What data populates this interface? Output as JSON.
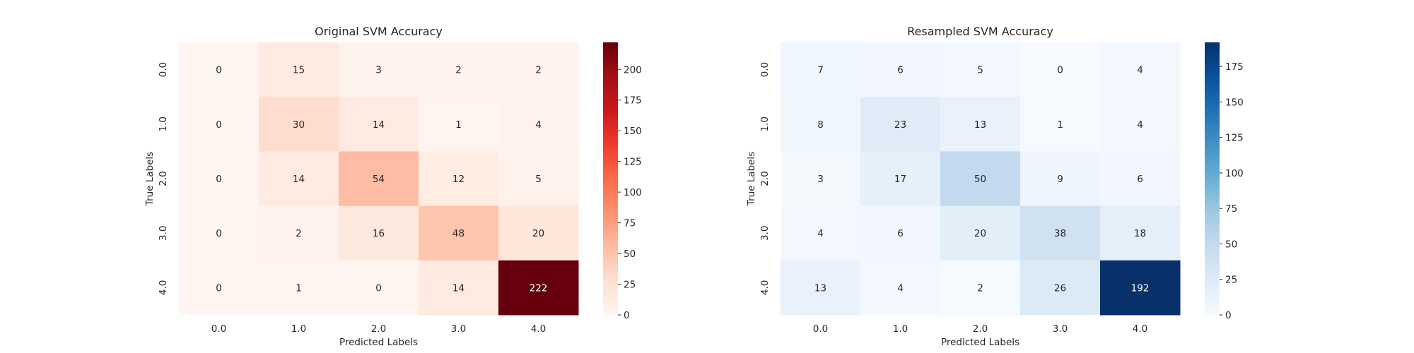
{
  "chart_data": [
    {
      "type": "heatmap",
      "title": "Original SVM Accuracy",
      "xlabel": "Predicted Labels",
      "ylabel": "True Labels",
      "x_categories": [
        "0.0",
        "1.0",
        "2.0",
        "3.0",
        "4.0"
      ],
      "y_categories": [
        "0.0",
        "1.0",
        "2.0",
        "3.0",
        "4.0"
      ],
      "values": [
        [
          0,
          15,
          3,
          2,
          2
        ],
        [
          0,
          30,
          14,
          1,
          4
        ],
        [
          0,
          14,
          54,
          12,
          5
        ],
        [
          0,
          2,
          16,
          48,
          20
        ],
        [
          0,
          1,
          0,
          14,
          222
        ]
      ],
      "colormap": "Reds",
      "color_low": "#fff5f0",
      "color_high": "#67000d",
      "vmin": 0,
      "vmax": 222,
      "colorbar_ticks": [
        0,
        25,
        50,
        75,
        100,
        125,
        150,
        175,
        200
      ]
    },
    {
      "type": "heatmap",
      "title": "Resampled SVM Accuracy",
      "xlabel": "Predicted Labels",
      "ylabel": "True Labels",
      "x_categories": [
        "0.0",
        "1.0",
        "2.0",
        "3.0",
        "4.0"
      ],
      "y_categories": [
        "0.0",
        "1.0",
        "2.0",
        "3.0",
        "4.0"
      ],
      "values": [
        [
          7,
          6,
          5,
          0,
          4
        ],
        [
          8,
          23,
          13,
          1,
          4
        ],
        [
          3,
          17,
          50,
          9,
          6
        ],
        [
          4,
          6,
          20,
          38,
          18
        ],
        [
          13,
          4,
          2,
          26,
          192
        ]
      ],
      "colormap": "Blues",
      "color_low": "#f7fbff",
      "color_high": "#08306b",
      "vmin": 0,
      "vmax": 192,
      "colorbar_ticks": [
        0,
        25,
        50,
        75,
        100,
        125,
        150,
        175
      ]
    }
  ]
}
